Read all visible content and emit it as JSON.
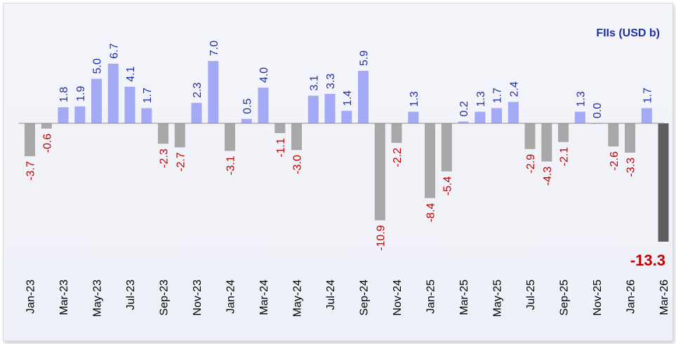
{
  "chart_data": {
    "type": "bar",
    "legend": "FIIs (USD b)",
    "categories": [
      "Jan-23",
      "Feb-23",
      "Mar-23",
      "Apr-23",
      "May-23",
      "Jun-23",
      "Jul-23",
      "Aug-23",
      "Sep-23",
      "Oct-23",
      "Nov-23",
      "Dec-23",
      "Jan-24",
      "Feb-24",
      "Mar-24",
      "Apr-24",
      "May-24",
      "Jun-24",
      "Jul-24",
      "Aug-24",
      "Sep-24",
      "Oct-24",
      "Nov-24",
      "Dec-24",
      "Jan-25",
      "Feb-25",
      "Mar-25",
      "Apr-25",
      "May-25",
      "Jun-25",
      "Jul-25",
      "Aug-25",
      "Sep-25",
      "Oct-25",
      "Nov-25",
      "Dec-25",
      "Jan-26",
      "Feb-26",
      "Mar-26"
    ],
    "tick_labels": [
      "Jan-23",
      "Mar-23",
      "May-23",
      "Jul-23",
      "Sep-23",
      "Nov-23",
      "Jan-24",
      "Mar-24",
      "May-24",
      "Jul-24",
      "Sep-24",
      "Nov-24",
      "Jan-25",
      "Mar-25",
      "May-25",
      "Jul-25",
      "Sep-25",
      "Nov-25",
      "Jan-26",
      "Mar-26"
    ],
    "values": [
      -3.7,
      -0.6,
      1.8,
      1.9,
      5.0,
      6.7,
      4.1,
      1.7,
      -2.3,
      -2.7,
      2.3,
      7.0,
      -3.1,
      0.5,
      4.0,
      -1.1,
      -3.0,
      3.1,
      3.3,
      1.4,
      5.9,
      -10.9,
      -2.2,
      1.3,
      -8.4,
      -5.4,
      0.2,
      1.3,
      1.7,
      2.4,
      -2.9,
      -4.3,
      -2.1,
      1.3,
      0.0,
      -2.6,
      -3.3,
      1.7,
      -13.3
    ],
    "data_labels": [
      "-3.7",
      "-0.6",
      "1.8",
      "1.9",
      "5.0",
      "6.7",
      "4.1",
      "1.7",
      "-2.3",
      "-2.7",
      "2.3",
      "7.0",
      "-3.1",
      "0.5",
      "4.0",
      "-1.1",
      "-3.0",
      "3.1",
      "3.3",
      "1.4",
      "5.9",
      "-10.9",
      "-2.2",
      "1.3",
      "-8.4",
      "-5.4",
      "0.2",
      "1.3",
      "1.7",
      "2.4",
      "-2.9",
      "-4.3",
      "-2.1",
      "1.3",
      "0.0",
      "-2.6",
      "-3.3",
      "1.7",
      "-13.3"
    ],
    "highlight_last": true,
    "colors": {
      "positive": "#a3a9f5",
      "negative": "#a8a8a8",
      "highlight": "#5e5e5e",
      "positive_label": "#1f2fa8",
      "negative_label": "#c00000",
      "axis": "#8c8c8c"
    }
  }
}
